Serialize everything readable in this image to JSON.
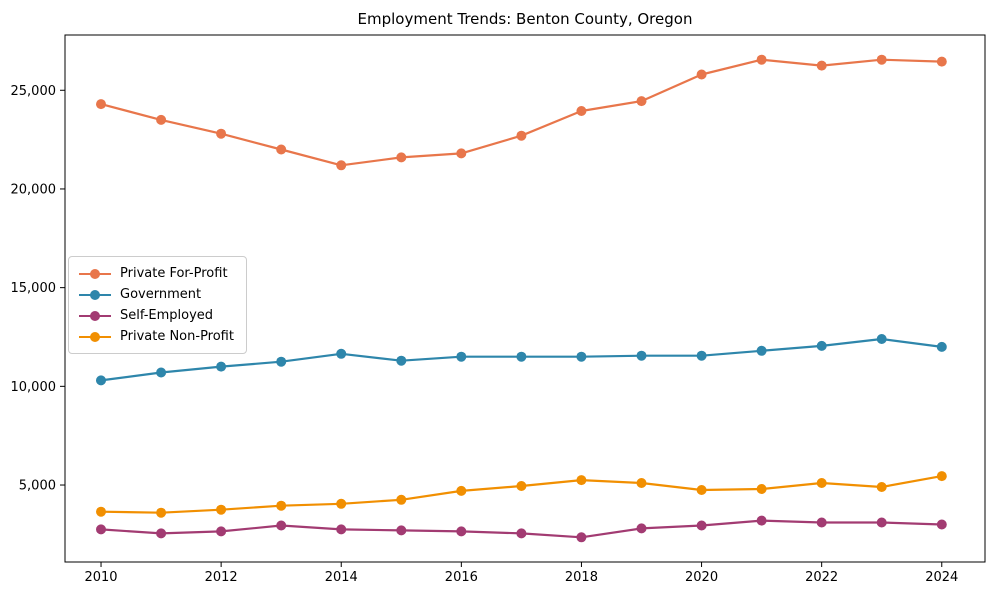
{
  "chart_data": {
    "type": "line",
    "title": "Employment Trends: Benton County, Oregon",
    "xlabel": "",
    "ylabel": "",
    "grid": false,
    "legend_position": "center-left",
    "x": [
      2010,
      2011,
      2012,
      2013,
      2014,
      2015,
      2016,
      2017,
      2018,
      2019,
      2020,
      2021,
      2022,
      2023,
      2024
    ],
    "xticks": [
      2010,
      2012,
      2014,
      2016,
      2018,
      2020,
      2022,
      2024
    ],
    "xtick_labels": [
      "2010",
      "2012",
      "2014",
      "2016",
      "2018",
      "2020",
      "2022",
      "2024"
    ],
    "yticks": [
      5000,
      10000,
      15000,
      20000,
      25000
    ],
    "ytick_labels": [
      "5,000",
      "10,000",
      "15,000",
      "20,000",
      "25,000"
    ],
    "xlim": [
      2009.4,
      2024.72
    ],
    "ylim": [
      1100,
      27800
    ],
    "series": [
      {
        "name": "Private For-Profit",
        "color": "#E8764B",
        "values": [
          24300,
          23500,
          22800,
          22000,
          21200,
          21600,
          21800,
          22700,
          23950,
          24450,
          25800,
          26550,
          26250,
          26550,
          26450
        ]
      },
      {
        "name": "Government",
        "color": "#2E86AB",
        "values": [
          10300,
          10700,
          11000,
          11250,
          11650,
          11300,
          11500,
          11500,
          11500,
          11550,
          11550,
          11800,
          12050,
          12400,
          12000
        ]
      },
      {
        "name": "Self-Employed",
        "color": "#A23B72",
        "values": [
          2750,
          2550,
          2650,
          2950,
          2750,
          2700,
          2650,
          2550,
          2350,
          2800,
          2950,
          3200,
          3100,
          3100,
          3000
        ]
      },
      {
        "name": "Private Non-Profit",
        "color": "#F18F01",
        "values": [
          3650,
          3600,
          3750,
          3950,
          4050,
          4250,
          4700,
          4950,
          5250,
          5100,
          4750,
          4800,
          5100,
          4900,
          5450
        ]
      }
    ]
  }
}
